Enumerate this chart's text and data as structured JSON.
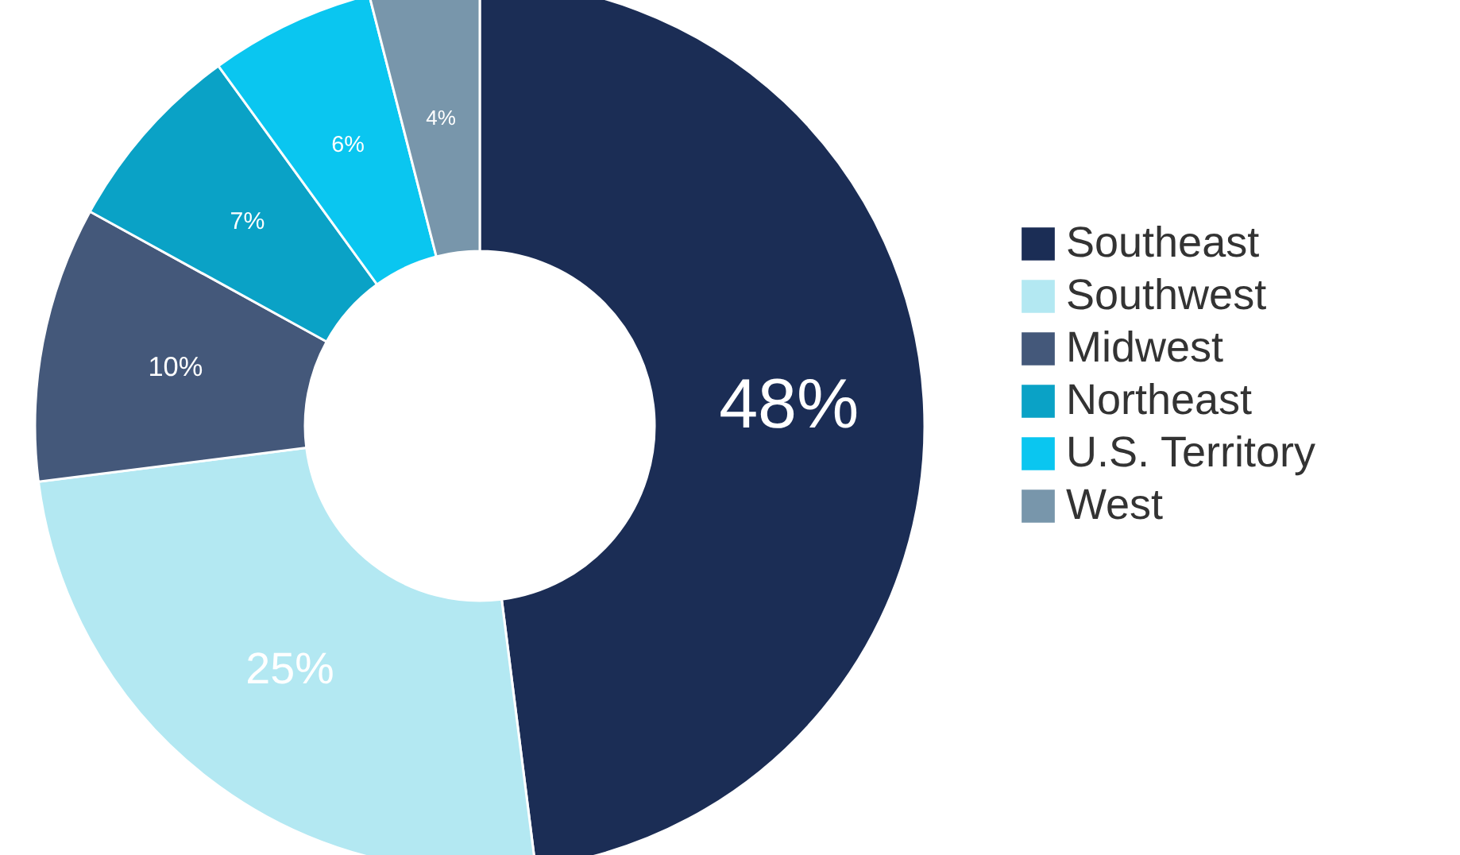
{
  "chart_data": {
    "type": "donut",
    "categories": [
      "Southeast",
      "Southwest",
      "Midwest",
      "Northeast",
      "U.S. Territory",
      "West"
    ],
    "values": [
      48,
      25,
      10,
      7,
      6,
      4
    ],
    "colors": [
      "#1b2d55",
      "#b3e8f2",
      "#44587a",
      "#0aa2c6",
      "#0ac6f0",
      "#7896ab"
    ],
    "value_labels": [
      "48%",
      "25%",
      "10%",
      "7%",
      "6%",
      "4%"
    ],
    "legend": "right"
  }
}
